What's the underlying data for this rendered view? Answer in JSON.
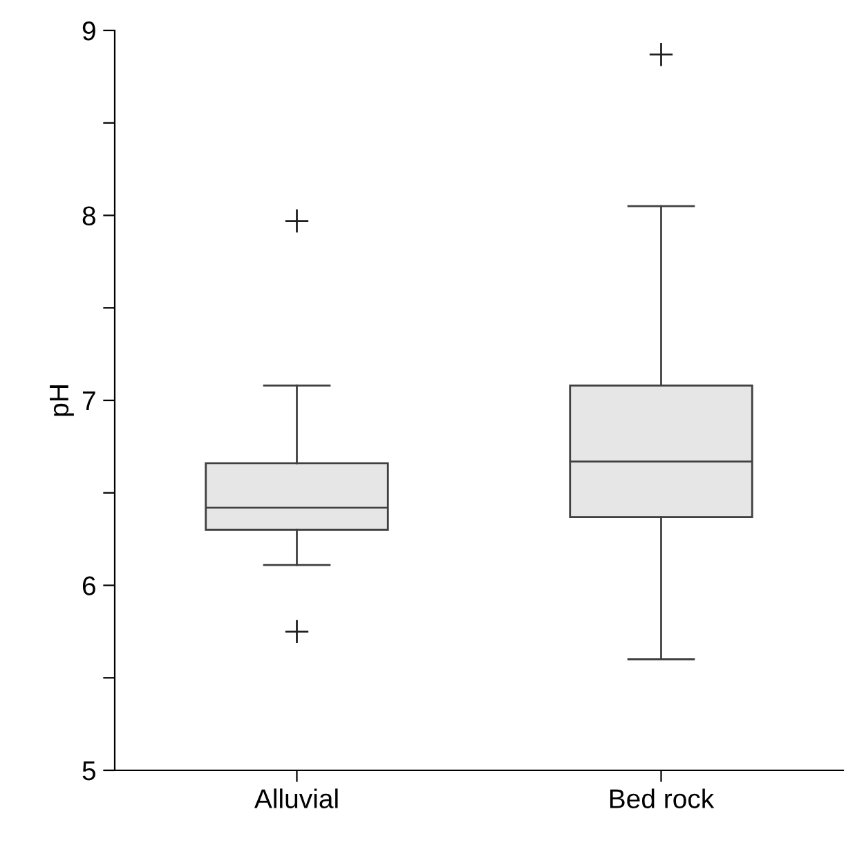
{
  "chart_data": {
    "type": "box",
    "ylabel": "pH",
    "categories": [
      "Alluvial",
      "Bed rock"
    ],
    "boxes": [
      {
        "low": 6.11,
        "q1": 6.3,
        "median": 6.42,
        "q3": 6.66,
        "high": 7.08,
        "outliers": [
          7.97,
          5.75
        ]
      },
      {
        "low": 5.6,
        "q1": 6.37,
        "median": 6.67,
        "q3": 7.08,
        "high": 8.05,
        "outliers": [
          8.87
        ]
      }
    ],
    "color": "#e6e6e6",
    "ylim": [
      5,
      9
    ],
    "yticks": [
      5,
      {
        "value": 5.5,
        "label": null
      },
      6,
      {
        "value": 6.5,
        "label": null
      },
      7,
      {
        "value": 7.5,
        "label": null
      },
      8,
      {
        "value": 8.5,
        "label": null
      },
      9
    ],
    "grid": false,
    "legend": false
  }
}
